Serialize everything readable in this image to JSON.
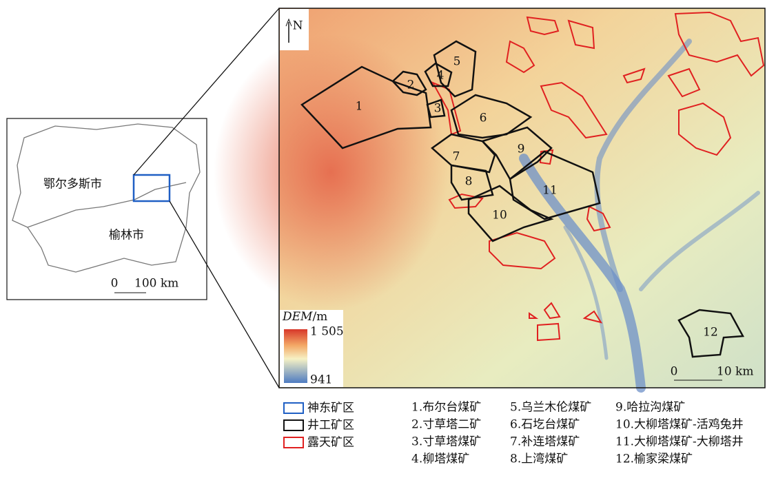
{
  "inset": {
    "labels": [
      "鄂尔多斯市",
      "榆林市"
    ],
    "scale": {
      "start": "0",
      "end": "100 km"
    }
  },
  "map": {
    "north": "N",
    "dem": {
      "title": "DEM",
      "unit": "/m",
      "max": "1 505",
      "min": "941"
    },
    "scale": {
      "start": "0",
      "end": "10 km"
    },
    "mine_labels": [
      "1",
      "2",
      "3",
      "4",
      "5",
      "6",
      "7",
      "8",
      "9",
      "10",
      "11",
      "12"
    ]
  },
  "legend": [
    "神东矿区",
    "井工矿区",
    "露天矿区"
  ],
  "mines": [
    "1.布尔台煤矿",
    "2.寸草塔二矿",
    "3.寸草塔煤矿",
    "4.柳塔煤矿",
    "5.乌兰木伦煤矿",
    "6.石圪台煤矿",
    "7.补连塔煤矿",
    "8.上湾煤矿",
    "9.哈拉沟煤矿",
    "10.大柳塔煤矿-活鸡兔井",
    "11.大柳塔煤矿-大柳塔井",
    "12.榆家梁煤矿"
  ]
}
